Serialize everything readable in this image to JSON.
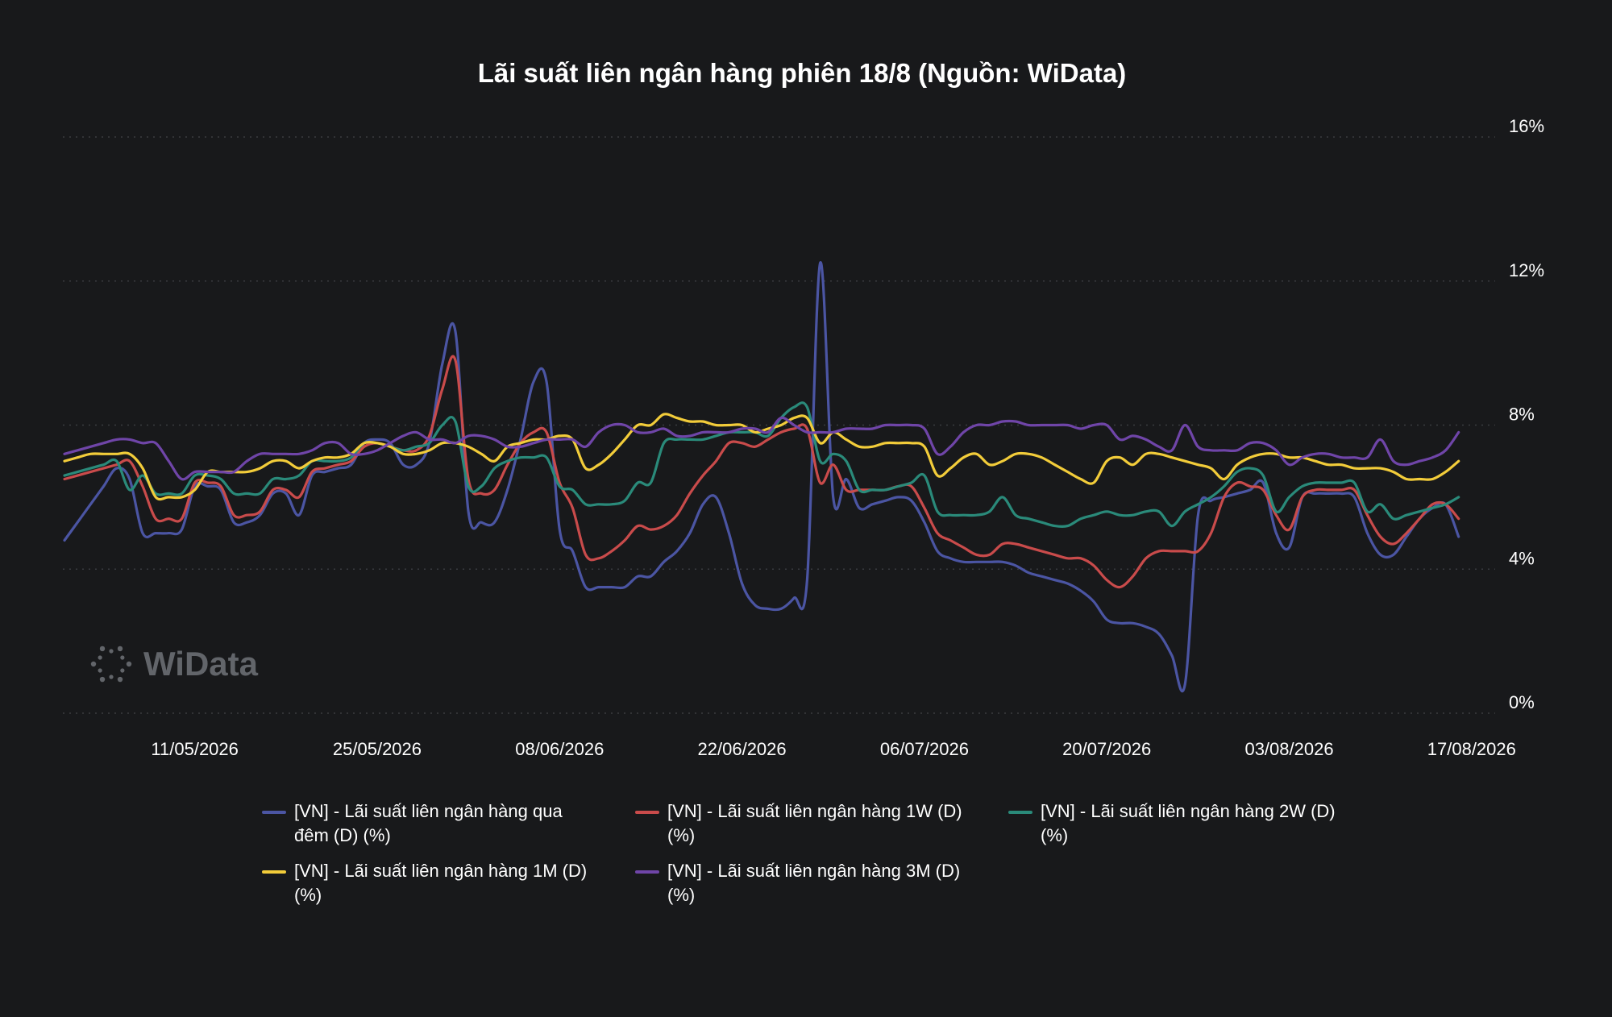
{
  "chart_data": {
    "type": "line",
    "title": "Lãi suất liên ngân hàng phiên 18/8 (Nguồn: WiData)",
    "watermark": "WiData",
    "x_tick_labels": [
      "11/05/2026",
      "25/05/2026",
      "08/06/2026",
      "22/06/2026",
      "06/07/2026",
      "20/07/2026",
      "03/08/2026",
      "17/08/2026"
    ],
    "y_tick_labels": [
      "0%",
      "4%",
      "8%",
      "12%",
      "16%"
    ],
    "ylim": [
      0,
      16
    ],
    "y_unit": "%",
    "grid": "horizontal dotted",
    "legend_position": "bottom",
    "x_dates": [
      "01/05/2026",
      "02/05/2026",
      "03/05/2026",
      "04/05/2026",
      "05/05/2026",
      "06/05/2026",
      "07/05/2026",
      "08/05/2026",
      "09/05/2026",
      "10/05/2026",
      "11/05/2026",
      "12/05/2026",
      "13/05/2026",
      "14/05/2026",
      "15/05/2026",
      "16/05/2026",
      "17/05/2026",
      "18/05/2026",
      "19/05/2026",
      "20/05/2026",
      "21/05/2026",
      "22/05/2026",
      "23/05/2026",
      "24/05/2026",
      "25/05/2026",
      "26/05/2026",
      "27/05/2026",
      "28/05/2026",
      "29/05/2026",
      "30/05/2026",
      "31/05/2026",
      "01/06/2026",
      "02/06/2026",
      "03/06/2026",
      "04/06/2026",
      "05/06/2026",
      "06/06/2026",
      "07/06/2026",
      "08/06/2026",
      "09/06/2026",
      "10/06/2026",
      "11/06/2026",
      "12/06/2026",
      "13/06/2026",
      "14/06/2026",
      "15/06/2026",
      "16/06/2026",
      "17/06/2026",
      "18/06/2026",
      "19/06/2026",
      "20/06/2026",
      "21/06/2026",
      "22/06/2026",
      "23/06/2026",
      "24/06/2026",
      "25/06/2026",
      "26/06/2026",
      "27/06/2026",
      "28/06/2026",
      "29/06/2026",
      "30/06/2026",
      "01/07/2026",
      "02/07/2026",
      "03/07/2026",
      "04/07/2026",
      "05/07/2026",
      "06/07/2026",
      "07/07/2026",
      "08/07/2026",
      "09/07/2026",
      "10/07/2026",
      "11/07/2026",
      "12/07/2026",
      "13/07/2026",
      "14/07/2026",
      "15/07/2026",
      "16/07/2026",
      "17/07/2026",
      "18/07/2026",
      "19/07/2026",
      "20/07/2026",
      "21/07/2026",
      "22/07/2026",
      "23/07/2026",
      "24/07/2026",
      "25/07/2026",
      "26/07/2026",
      "27/07/2026",
      "28/07/2026",
      "29/07/2026",
      "30/07/2026",
      "31/07/2026",
      "01/08/2026",
      "02/08/2026",
      "03/08/2026",
      "04/08/2026",
      "05/08/2026",
      "06/08/2026",
      "07/08/2026",
      "08/08/2026",
      "09/08/2026",
      "10/08/2026",
      "11/08/2026",
      "12/08/2026",
      "13/08/2026",
      "14/08/2026",
      "15/08/2026",
      "16/08/2026",
      "17/08/2026",
      "18/08/2026"
    ],
    "series": [
      {
        "name": "[VN] - Lãi suất liên ngân hàng qua đêm (D) (%)",
        "color": "#4b55a3",
        "values": [
          4.8,
          5.3,
          5.8,
          6.3,
          6.8,
          6.5,
          5.0,
          5.0,
          5.0,
          5.1,
          6.3,
          6.3,
          6.2,
          5.3,
          5.3,
          5.5,
          6.1,
          6.1,
          5.5,
          6.6,
          6.7,
          6.8,
          6.9,
          7.5,
          7.6,
          7.5,
          6.9,
          6.9,
          7.5,
          9.7,
          10.6,
          5.6,
          5.3,
          5.3,
          6.2,
          7.6,
          9.2,
          9.2,
          5.1,
          4.5,
          3.5,
          3.5,
          3.5,
          3.5,
          3.8,
          3.8,
          4.2,
          4.5,
          5.0,
          5.8,
          6.0,
          5.0,
          3.6,
          3.0,
          2.9,
          2.9,
          3.2,
          3.7,
          12.5,
          6.0,
          6.5,
          5.7,
          5.8,
          5.9,
          6.0,
          5.9,
          5.3,
          4.5,
          4.3,
          4.2,
          4.2,
          4.2,
          4.2,
          4.1,
          3.9,
          3.8,
          3.7,
          3.6,
          3.4,
          3.1,
          2.6,
          2.5,
          2.5,
          2.4,
          2.2,
          1.6,
          0.8,
          5.5,
          5.9,
          6.0,
          6.1,
          6.2,
          6.4,
          5.0,
          4.6,
          6.0,
          6.1,
          6.1,
          6.1,
          6.0,
          5.0,
          4.4,
          4.4,
          4.9,
          5.4,
          5.7,
          5.8,
          4.9
        ],
        "row_note": "values extend through 18/08/2026"
      },
      {
        "name": "[VN] - Lãi suất liên ngân hàng 1W (D) (%)",
        "color": "#c94b4b",
        "values": [
          6.5,
          6.6,
          6.7,
          6.8,
          6.9,
          7.0,
          6.3,
          5.4,
          5.4,
          5.4,
          6.4,
          6.4,
          6.3,
          5.5,
          5.5,
          5.6,
          6.2,
          6.2,
          6.0,
          6.7,
          6.8,
          6.9,
          7.0,
          7.4,
          7.5,
          7.4,
          7.3,
          7.3,
          7.7,
          9.0,
          9.8,
          6.5,
          6.1,
          6.2,
          6.9,
          7.5,
          7.8,
          7.8,
          6.4,
          5.7,
          4.4,
          4.3,
          4.5,
          4.8,
          5.2,
          5.1,
          5.2,
          5.5,
          6.1,
          6.6,
          7.0,
          7.5,
          7.5,
          7.4,
          7.6,
          7.8,
          7.9,
          7.9,
          6.4,
          6.9,
          6.2,
          6.2,
          6.2,
          6.2,
          6.3,
          6.3,
          5.7,
          5.0,
          4.8,
          4.6,
          4.4,
          4.4,
          4.7,
          4.7,
          4.6,
          4.5,
          4.4,
          4.3,
          4.3,
          4.1,
          3.7,
          3.5,
          3.8,
          4.3,
          4.5,
          4.5,
          4.5,
          4.5,
          5.0,
          6.0,
          6.4,
          6.3,
          6.2,
          5.5,
          5.1,
          6.0,
          6.2,
          6.2,
          6.2,
          6.2,
          5.5,
          4.9,
          4.7,
          5.0,
          5.4,
          5.8,
          5.8,
          5.4
        ],
        "row_note": "values extend through 18/08/2026"
      },
      {
        "name": "[VN] - Lãi suất liên ngân hàng 2W (D) (%)",
        "color": "#2a8a7a",
        "values": [
          6.6,
          6.7,
          6.8,
          6.9,
          7.0,
          6.2,
          6.6,
          6.1,
          6.1,
          6.1,
          6.6,
          6.6,
          6.5,
          6.1,
          6.1,
          6.1,
          6.5,
          6.5,
          6.6,
          7.0,
          7.0,
          7.0,
          7.1,
          7.5,
          7.5,
          7.4,
          7.3,
          7.4,
          7.5,
          8.0,
          8.1,
          6.3,
          6.3,
          6.8,
          7.0,
          7.1,
          7.1,
          7.1,
          6.3,
          6.2,
          5.8,
          5.8,
          5.8,
          5.9,
          6.4,
          6.4,
          7.5,
          7.6,
          7.6,
          7.6,
          7.7,
          7.8,
          7.8,
          7.8,
          7.7,
          8.2,
          8.5,
          8.5,
          7.0,
          7.2,
          7.0,
          6.2,
          6.2,
          6.2,
          6.3,
          6.4,
          6.6,
          5.6,
          5.5,
          5.5,
          5.5,
          5.6,
          6.0,
          5.5,
          5.4,
          5.3,
          5.2,
          5.2,
          5.4,
          5.5,
          5.6,
          5.5,
          5.5,
          5.6,
          5.6,
          5.2,
          5.6,
          5.8,
          6.0,
          6.3,
          6.7,
          6.8,
          6.6,
          5.6,
          6.0,
          6.3,
          6.4,
          6.4,
          6.4,
          6.4,
          5.6,
          5.8,
          5.4,
          5.5,
          5.6,
          5.7,
          5.8,
          6.0
        ],
        "row_note": "values extend through 18/08/2026"
      },
      {
        "name": "[VN] - Lãi suất liên ngân hàng 1M (D) (%)",
        "color": "#f2cc3a",
        "values": [
          7.0,
          7.1,
          7.2,
          7.2,
          7.2,
          7.2,
          6.8,
          6.0,
          6.0,
          6.0,
          6.2,
          6.7,
          6.7,
          6.7,
          6.7,
          6.8,
          7.0,
          7.0,
          6.8,
          7.0,
          7.1,
          7.1,
          7.2,
          7.5,
          7.5,
          7.4,
          7.2,
          7.2,
          7.3,
          7.5,
          7.5,
          7.4,
          7.2,
          7.0,
          7.4,
          7.5,
          7.6,
          7.6,
          7.7,
          7.6,
          6.8,
          6.9,
          7.2,
          7.6,
          8.0,
          8.0,
          8.3,
          8.2,
          8.1,
          8.1,
          8.0,
          8.0,
          8.0,
          7.8,
          7.9,
          8.0,
          8.2,
          8.2,
          7.5,
          7.8,
          7.6,
          7.4,
          7.4,
          7.5,
          7.5,
          7.5,
          7.4,
          6.6,
          6.8,
          7.1,
          7.2,
          6.9,
          7.0,
          7.2,
          7.2,
          7.1,
          6.9,
          6.7,
          6.5,
          6.4,
          7.0,
          7.1,
          6.9,
          7.2,
          7.2,
          7.1,
          7.0,
          6.9,
          6.8,
          6.5,
          6.9,
          7.1,
          7.2,
          7.2,
          7.1,
          7.1,
          7.0,
          6.9,
          6.9,
          6.8,
          6.8,
          6.8,
          6.7,
          6.5,
          6.5,
          6.5,
          6.7,
          7.0
        ],
        "row_note": "values extend through 18/08/2026"
      },
      {
        "name": "[VN] - Lãi suất liên ngân hàng 3M (D) (%)",
        "color": "#6f45a8",
        "values": [
          7.2,
          7.3,
          7.4,
          7.5,
          7.6,
          7.6,
          7.5,
          7.5,
          7.0,
          6.5,
          6.7,
          6.7,
          6.7,
          6.7,
          7.0,
          7.2,
          7.2,
          7.2,
          7.2,
          7.3,
          7.5,
          7.5,
          7.2,
          7.2,
          7.3,
          7.5,
          7.7,
          7.8,
          7.6,
          7.6,
          7.5,
          7.7,
          7.7,
          7.6,
          7.4,
          7.4,
          7.5,
          7.6,
          7.6,
          7.6,
          7.4,
          7.8,
          8.0,
          8.0,
          7.8,
          7.8,
          7.9,
          7.7,
          7.7,
          7.8,
          7.8,
          7.8,
          7.9,
          7.9,
          7.8,
          8.2,
          8.0,
          7.8,
          7.8,
          7.8,
          7.9,
          7.9,
          7.9,
          8.0,
          8.0,
          8.0,
          7.9,
          7.2,
          7.4,
          7.8,
          8.0,
          8.0,
          8.1,
          8.1,
          8.0,
          8.0,
          8.0,
          8.0,
          7.9,
          8.0,
          8.0,
          7.6,
          7.7,
          7.6,
          7.4,
          7.3,
          8.0,
          7.4,
          7.3,
          7.3,
          7.3,
          7.5,
          7.5,
          7.3,
          6.9,
          7.1,
          7.2,
          7.2,
          7.1,
          7.1,
          7.1,
          7.6,
          7.0,
          6.9,
          7.0,
          7.1,
          7.3,
          7.8
        ],
        "row_note": "values extend through 18/08/2026"
      }
    ]
  }
}
